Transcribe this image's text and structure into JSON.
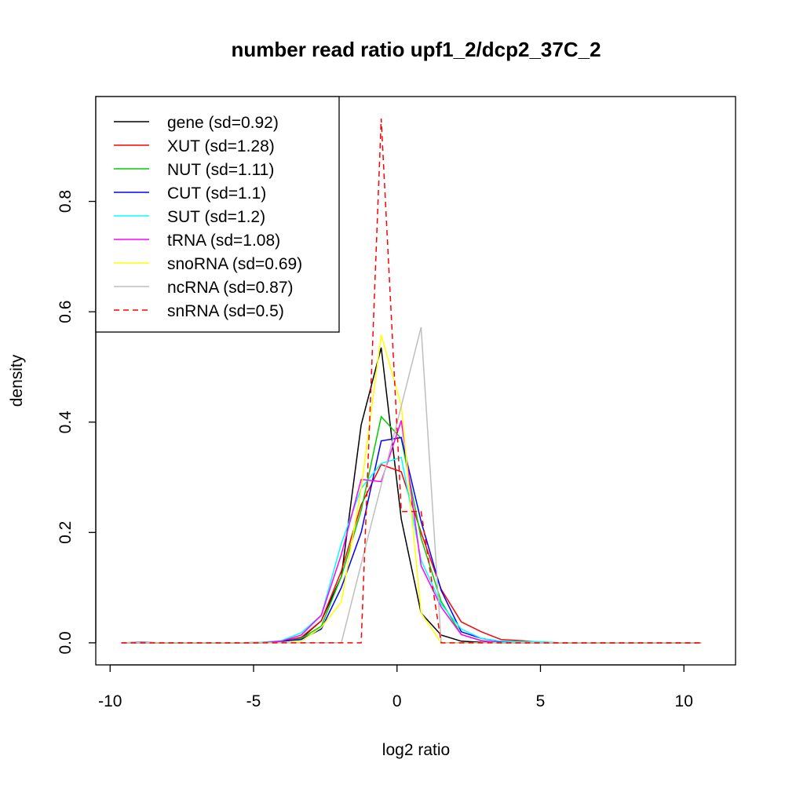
{
  "chart_data": {
    "type": "line",
    "title": "number read ratio upf1_2/dcp2_37C_2",
    "xlabel": "log2 ratio",
    "ylabel": "density",
    "xlim": [
      -10.5,
      11.8
    ],
    "ylim": [
      -0.04,
      0.99
    ],
    "xticks": [
      -10,
      -5,
      0,
      5,
      10
    ],
    "xtick_labels": [
      "-10",
      "-5",
      "0",
      "5",
      "10"
    ],
    "yticks": [
      0,
      0.2,
      0.4,
      0.6,
      0.8
    ],
    "ytick_labels": [
      "0.0",
      "0.2",
      "0.4",
      "0.6",
      "0.8"
    ],
    "grid": false,
    "legend_position": "top-left",
    "x": [
      -9.61,
      -8.91,
      -8.22,
      -7.52,
      -6.82,
      -6.13,
      -5.43,
      -4.73,
      -4.03,
      -3.34,
      -2.64,
      -1.94,
      -1.25,
      -0.55,
      0.15,
      0.84,
      1.54,
      2.24,
      2.94,
      3.63,
      4.33,
      5.03,
      5.72,
      6.42,
      7.12,
      7.82,
      8.51,
      9.21,
      9.91,
      10.6
    ],
    "series": [
      {
        "name": "gene (sd=0.92)",
        "color": "#000000",
        "dash": false,
        "values": [
          0,
          0,
          0,
          0,
          0,
          0,
          0,
          0,
          0.002,
          0.008,
          0.04,
          0.12,
          0.395,
          0.535,
          0.224,
          0.054,
          0.014,
          0.003,
          0.001,
          0,
          0,
          0,
          0,
          0,
          0,
          0,
          0,
          0,
          0,
          0
        ]
      },
      {
        "name": "XUT (sd=1.28)",
        "color": "#FF0000",
        "dash": false,
        "values": [
          0,
          0,
          0,
          0,
          0,
          0,
          0,
          0.001,
          0.003,
          0.01,
          0.04,
          0.13,
          0.25,
          0.323,
          0.31,
          0.2,
          0.097,
          0.038,
          0.02,
          0.006,
          0.004,
          0.001,
          0,
          0,
          0,
          0,
          0,
          0,
          0,
          0
        ]
      },
      {
        "name": "NUT (sd=1.11)",
        "color": "#00CD00",
        "dash": false,
        "values": [
          0,
          0,
          0,
          0,
          0,
          0,
          0,
          0,
          0.002,
          0.008,
          0.03,
          0.12,
          0.24,
          0.41,
          0.37,
          0.19,
          0.075,
          0.015,
          0.004,
          0,
          0,
          0,
          0,
          0,
          0,
          0,
          0,
          0,
          0,
          0
        ]
      },
      {
        "name": "CUT (sd=1.1)",
        "color": "#0000FF",
        "dash": false,
        "values": [
          0,
          0.001,
          0,
          0,
          0,
          0,
          0,
          0,
          0.003,
          0.006,
          0.025,
          0.1,
          0.2,
          0.366,
          0.372,
          0.22,
          0.095,
          0.02,
          0.008,
          0.002,
          0,
          0,
          0,
          0,
          0,
          0,
          0,
          0,
          0,
          0
        ]
      },
      {
        "name": "SUT (sd=1.2)",
        "color": "#00FFFF",
        "dash": false,
        "values": [
          0,
          0,
          0,
          0,
          0,
          0,
          0,
          0.001,
          0.004,
          0.018,
          0.05,
          0.18,
          0.28,
          0.325,
          0.336,
          0.15,
          0.07,
          0.025,
          0.008,
          0.003,
          0.002,
          0.002,
          0,
          0,
          0,
          0,
          0,
          0,
          0,
          0
        ]
      },
      {
        "name": "tRNA (sd=1.08)",
        "color": "#FF00FF",
        "dash": false,
        "values": [
          0,
          0,
          0,
          0,
          0,
          0,
          0,
          0,
          0.003,
          0.014,
          0.05,
          0.16,
          0.296,
          0.292,
          0.403,
          0.14,
          0.065,
          0.015,
          0.004,
          0,
          0,
          0,
          0,
          0,
          0,
          0,
          0,
          0,
          0,
          0
        ]
      },
      {
        "name": "snoRNA (sd=0.69)",
        "color": "#FFFF00",
        "dash": false,
        "values": [
          0,
          0,
          0,
          0,
          0,
          0,
          0,
          0,
          0,
          0.003,
          0.028,
          0.074,
          0.28,
          0.558,
          0.43,
          0.054,
          0,
          0,
          0,
          0,
          0,
          0,
          0,
          0,
          0,
          0,
          0,
          0,
          0,
          0
        ]
      },
      {
        "name": "ncRNA (sd=0.87)",
        "color": "#BEBEBE",
        "dash": false,
        "values": [
          0,
          0,
          0,
          0,
          0,
          0,
          0,
          0,
          0,
          0,
          0,
          0,
          0.143,
          0.286,
          0.429,
          0.572,
          0,
          0,
          0,
          0,
          0,
          0,
          0,
          0,
          0,
          0,
          0,
          0,
          0,
          0
        ]
      },
      {
        "name": "snRNA (sd=0.5)",
        "color": "#FF0000",
        "dash": true,
        "values": [
          0,
          0,
          0,
          0,
          0,
          0,
          0,
          0,
          0,
          0,
          0,
          0,
          0,
          0.95,
          0.238,
          0.238,
          0,
          0,
          0,
          0,
          0,
          0,
          0,
          0,
          0,
          0,
          0,
          0,
          0,
          0
        ]
      }
    ]
  }
}
